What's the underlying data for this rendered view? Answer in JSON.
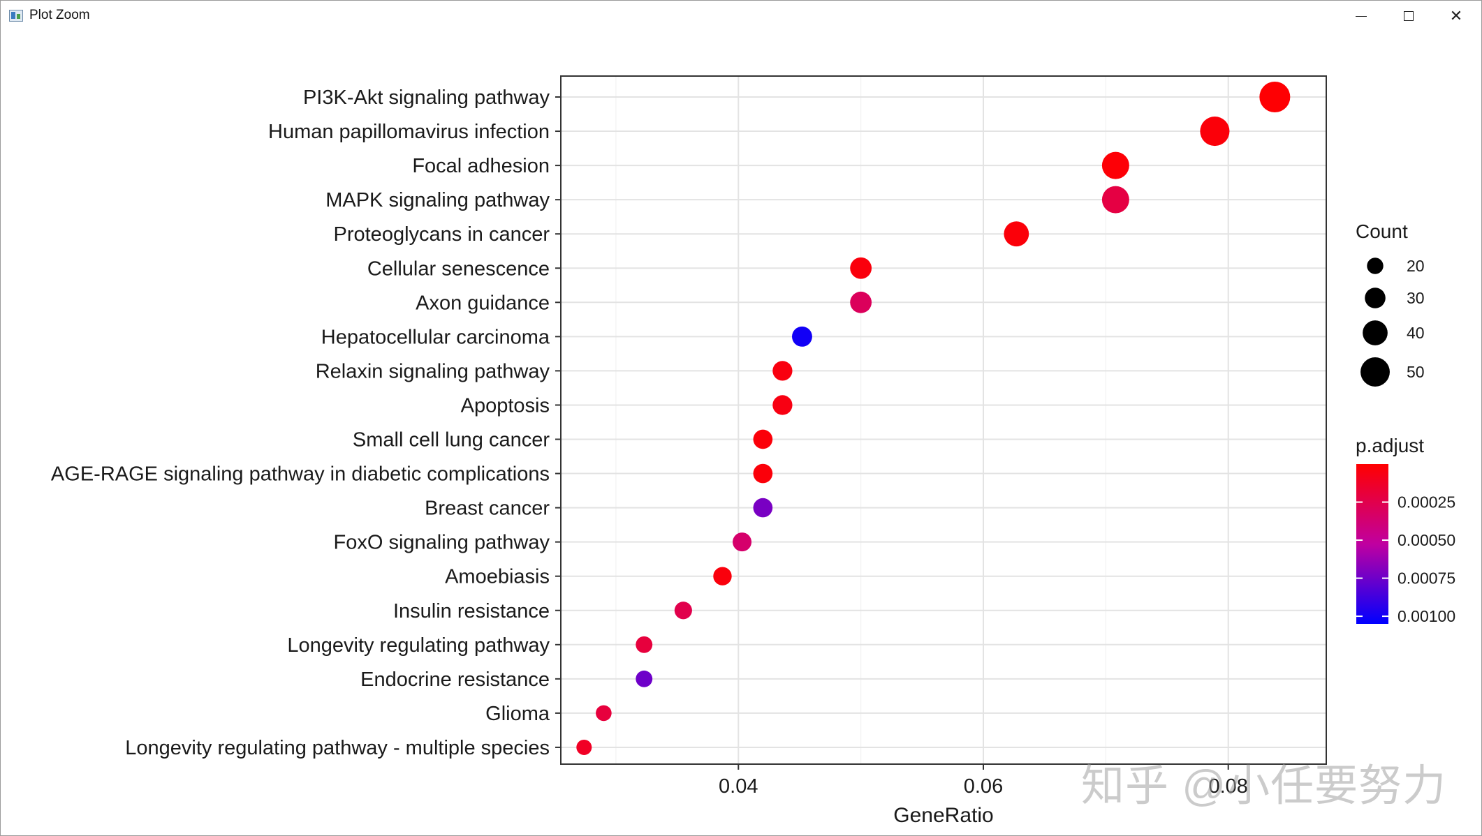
{
  "window": {
    "title": "Plot Zoom",
    "controls": {
      "minimize_icon": "minimize-icon",
      "maximize_icon": "maximize-icon",
      "close_icon": "close-icon"
    }
  },
  "chart_data": {
    "type": "scatter",
    "subtype": "dotplot",
    "xlabel": "GeneRatio",
    "ylabel": "",
    "xlim": [
      0.0255,
      0.088
    ],
    "xticks": [
      0.04,
      0.06,
      0.08
    ],
    "xtick_labels": [
      "0.04",
      "0.06",
      "0.08"
    ],
    "grid": true,
    "categories": [
      "PI3K-Akt signaling pathway",
      "Human papillomavirus infection",
      "Focal adhesion",
      "MAPK signaling pathway",
      "Proteoglycans in cancer",
      "Cellular senescence",
      "Axon guidance",
      "Hepatocellular carcinoma",
      "Relaxin signaling pathway",
      "Apoptosis",
      "Small cell lung cancer",
      "AGE-RAGE signaling pathway in diabetic complications",
      "Breast cancer",
      "FoxO signaling pathway",
      "Amoebiasis",
      "Insulin resistance",
      "Longevity regulating pathway",
      "Endocrine resistance",
      "Glioma",
      "Longevity regulating pathway - multiple species"
    ],
    "gene_ratio": [
      0.0838,
      0.0789,
      0.0708,
      0.0708,
      0.0627,
      0.05,
      0.05,
      0.0452,
      0.0436,
      0.0436,
      0.042,
      0.042,
      0.042,
      0.0403,
      0.0387,
      0.0355,
      0.0323,
      0.0323,
      0.029,
      0.0274
    ],
    "count": [
      52,
      49,
      44,
      44,
      39,
      31,
      31,
      28,
      27,
      27,
      26,
      26,
      26,
      25,
      24,
      22,
      20,
      20,
      18,
      17
    ],
    "p_adjust": [
      1e-05,
      3e-05,
      2e-05,
      0.00022,
      3e-05,
      4e-05,
      0.0003,
      0.001,
      5e-05,
      6e-05,
      3e-05,
      3e-05,
      0.00072,
      0.00035,
      4e-05,
      0.00025,
      0.0002,
      0.00075,
      0.0002,
      0.00012
    ],
    "legend": {
      "size": {
        "title": "Count",
        "values": [
          20,
          30,
          40,
          50
        ],
        "labels": [
          "20",
          "30",
          "40",
          "50"
        ],
        "placement": "right"
      },
      "color": {
        "title": "p.adjust",
        "low_color": "#ff0000",
        "mid_color": "#c000a0",
        "high_color": "#0000ff",
        "range": [
          0.0,
          0.00105
        ],
        "breaks": [
          0.00025,
          0.0005,
          0.00075,
          0.001
        ],
        "labels": [
          "0.00025",
          "0.00050",
          "0.00075",
          "0.00100"
        ],
        "placement": "right"
      }
    }
  },
  "watermark": {
    "text": "知乎 @小任要努力"
  }
}
